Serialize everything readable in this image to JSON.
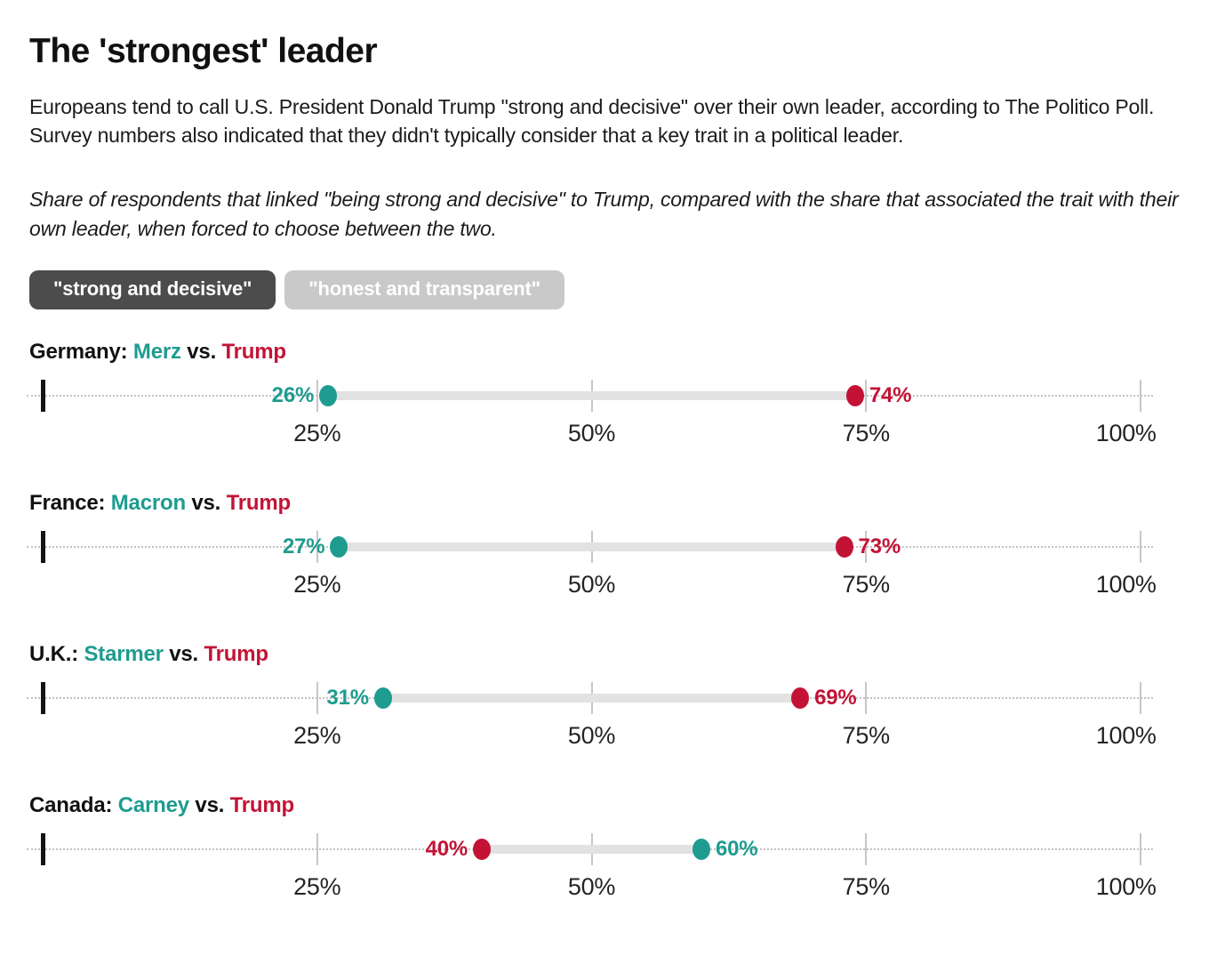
{
  "page": {
    "title": "The 'strongest' leader",
    "intro": "Europeans tend to call U.S. President Donald Trump \"strong and decisive\" over their own leader, according to The Politico Poll. Survey numbers also indicated that they didn't typically consider that a key trait in a political leader.",
    "note": "Share of respondents that linked \"being strong and decisive\" to Trump, compared with the share that associated the trait with their own leader, when forced to choose between the two."
  },
  "toggle": {
    "options": [
      {
        "label": "\"strong and decisive\"",
        "selected": true
      },
      {
        "label": "\"honest and transparent\"",
        "selected": false
      }
    ]
  },
  "colors": {
    "teal": "#1E9C8F",
    "red": "#C31335",
    "band": "#E2E2E2",
    "tick": "#C7C7C7",
    "axis_zero": "#141414",
    "button_active": "#4C4C4C",
    "button_inactive": "#C9C9C9"
  },
  "chart_data": {
    "type": "dumbbell",
    "unit": "%",
    "vs_label": "vs.",
    "axis": {
      "min": 0,
      "max": 100,
      "grid": false,
      "ticks": [
        {
          "value": 25,
          "label": "25%"
        },
        {
          "value": 50,
          "label": "50%"
        },
        {
          "value": 75,
          "label": "75%"
        },
        {
          "value": 100,
          "label": "100%"
        }
      ]
    },
    "legend": {
      "own_leader_color": "#1E9C8F",
      "trump_color": "#C31335"
    },
    "rows": [
      {
        "country": "Germany",
        "leader": "Merz",
        "leader_value": 26,
        "leader_label": "26%",
        "opponent": "Trump",
        "opponent_value": 74,
        "opponent_label": "74%"
      },
      {
        "country": "France",
        "leader": "Macron",
        "leader_value": 27,
        "leader_label": "27%",
        "opponent": "Trump",
        "opponent_value": 73,
        "opponent_label": "73%"
      },
      {
        "country": "U.K.",
        "leader": "Starmer",
        "leader_value": 31,
        "leader_label": "31%",
        "opponent": "Trump",
        "opponent_value": 69,
        "opponent_label": "69%"
      },
      {
        "country": "Canada",
        "leader": "Carney",
        "leader_value": 60,
        "leader_label": "60%",
        "opponent": "Trump",
        "opponent_value": 40,
        "opponent_label": "40%"
      }
    ]
  }
}
